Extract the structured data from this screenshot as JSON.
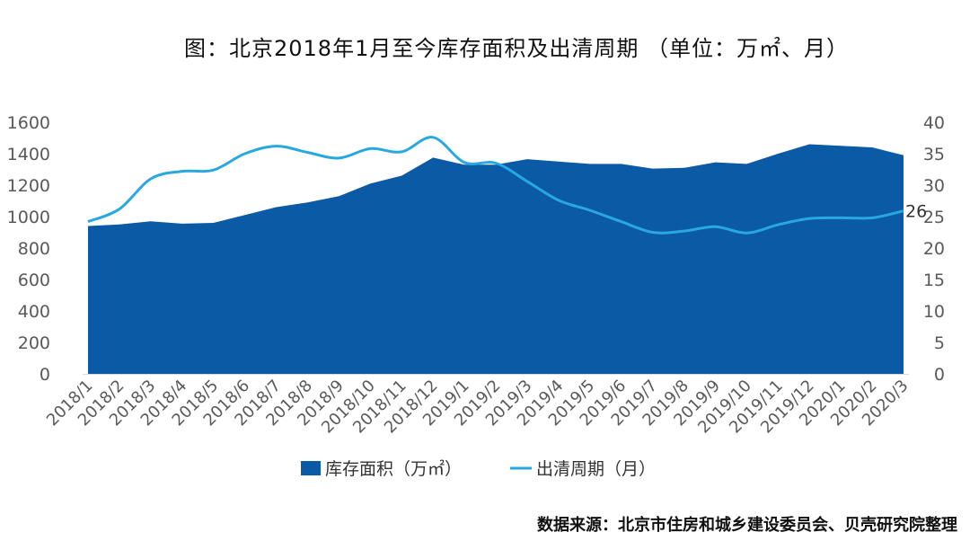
{
  "chart_data": {
    "type": "area",
    "title": "图：北京2018年1月至今库存面积及出清周期 （单位：万㎡、月）",
    "categories": [
      "2018/1",
      "2018/2",
      "2018/3",
      "2018/4",
      "2018/5",
      "2018/6",
      "2018/7",
      "2018/8",
      "2018/9",
      "2018/10",
      "2018/11",
      "2018/12",
      "2019/1",
      "2019/2",
      "2019/3",
      "2019/4",
      "2019/5",
      "2019/6",
      "2019/7",
      "2019/8",
      "2019/9",
      "2019/10",
      "2019/11",
      "2019/12",
      "2020/1",
      "2020/2",
      "2020/3"
    ],
    "series": [
      {
        "name": "库存面积（万㎡）",
        "type": "area",
        "axis": "left",
        "color": "#0a5aa6",
        "values": [
          940,
          950,
          970,
          955,
          960,
          1010,
          1060,
          1090,
          1130,
          1210,
          1260,
          1375,
          1330,
          1330,
          1365,
          1350,
          1335,
          1335,
          1305,
          1310,
          1345,
          1335,
          1400,
          1460,
          1450,
          1440,
          1390
        ]
      },
      {
        "name": "出清周期（月）",
        "type": "line",
        "axis": "right",
        "color": "#29a8e0",
        "values": [
          24.2,
          26.2,
          31,
          32.2,
          32.4,
          35,
          36.2,
          35.2,
          34.3,
          35.8,
          35.3,
          37.6,
          33.6,
          33.5,
          30.6,
          27.6,
          26,
          24.2,
          22.5,
          22.7,
          23.4,
          22.4,
          23.7,
          24.7,
          24.8,
          24.8,
          25.9
        ]
      }
    ],
    "ylim_left": [
      0,
      1600
    ],
    "yticks_left": [
      "0",
      "200",
      "400",
      "600",
      "800",
      "1000",
      "1200",
      "1400",
      "1600"
    ],
    "ylim_right": [
      0,
      40
    ],
    "yticks_right": [
      "0",
      "5",
      "10",
      "15",
      "20",
      "25",
      "30",
      "35",
      "40"
    ],
    "data_label_last": "26",
    "grid": false,
    "legend": "bottom"
  },
  "source_note": "数据来源：北京市住房和城乡建设委员会、贝壳研究院整理"
}
